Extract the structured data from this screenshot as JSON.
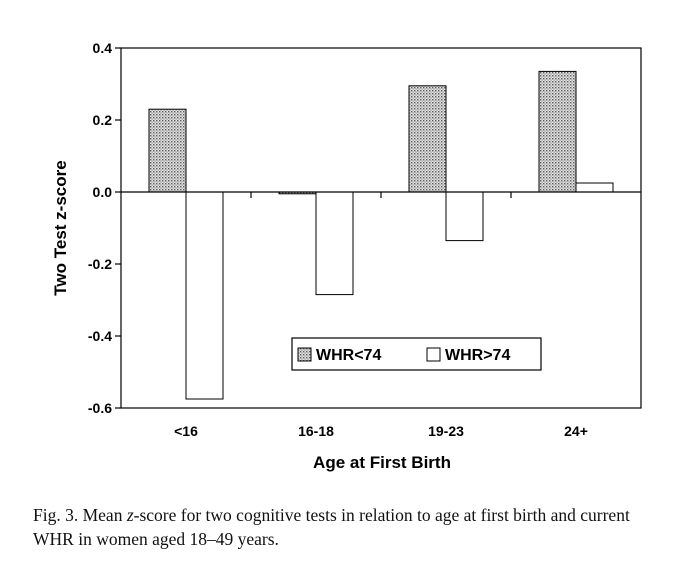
{
  "chart_data": {
    "type": "bar",
    "xlabel": "Age at First Birth",
    "ylabel": "Two Test z-score",
    "ylim": [
      -0.6,
      0.4
    ],
    "yticks": [
      "0.4",
      "0.2",
      "0.0",
      "-0.2",
      "-0.4",
      "-0.6"
    ],
    "categories": [
      "<16",
      "16-18",
      "19-23",
      "24+"
    ],
    "series": [
      {
        "name": "WHR<74",
        "values": [
          0.23,
          -0.005,
          0.295,
          0.335
        ],
        "fill": "dotted"
      },
      {
        "name": "WHR>74",
        "values": [
          -0.575,
          -0.285,
          -0.135,
          0.025
        ],
        "fill": "white"
      }
    ],
    "legend_position": "bottom-right",
    "grid": false
  },
  "caption": {
    "prefix": "Fig. 3. Mean ",
    "italic": "z",
    "suffix": "-score for two cognitive tests in relation to age at first birth and current WHR in women aged 18–49 years."
  }
}
